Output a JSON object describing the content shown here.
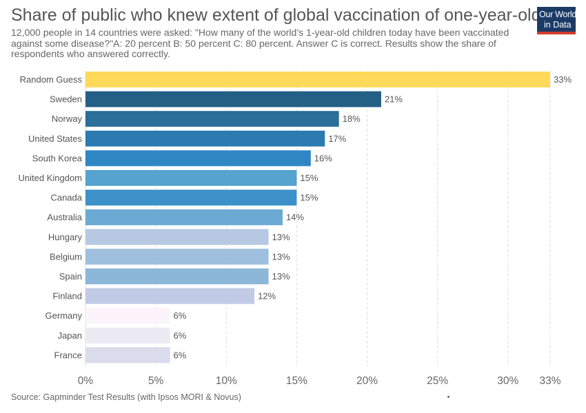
{
  "header": {
    "title": "Share of public who knew extent of global vaccination of one-year-olds",
    "subtitle": "12,000 people in 14 countries were asked: \"How many of the world’s 1-year-old children today have been vaccinated against some disease?\"A: 20 percent B: 50 percent C: 80 percent. Answer C is correct. Results show the share of respondents who answered correctly."
  },
  "logo": {
    "line1": "Our World",
    "line2": "in Data",
    "bg": "#1b3a66",
    "accent": "#d73b2d"
  },
  "footer": {
    "source": "Source: Gapminder Test Results (with Ipsos MORI & Novus)"
  },
  "chart_data": {
    "type": "bar",
    "orientation": "horizontal",
    "title": "Share of public who knew extent of global vaccination of one-year-olds",
    "xlabel": "",
    "ylabel": "",
    "xlim": [
      0,
      33
    ],
    "grid": true,
    "x_ticks": [
      {
        "value": 0,
        "label": "0%"
      },
      {
        "value": 5,
        "label": "5%"
      },
      {
        "value": 10,
        "label": "10%"
      },
      {
        "value": 15,
        "label": "15%"
      },
      {
        "value": 20,
        "label": "20%"
      },
      {
        "value": 25,
        "label": "25%"
      },
      {
        "value": 30,
        "label": "30%"
      },
      {
        "value": 33,
        "label": "33%"
      }
    ],
    "categories": [
      "Random Guess",
      "Sweden",
      "Norway",
      "United States",
      "South Korea",
      "United Kingdom",
      "Canada",
      "Australia",
      "Hungary",
      "Belgium",
      "Spain",
      "Finland",
      "Germany",
      "Japan",
      "France"
    ],
    "values": [
      33,
      21,
      18,
      17,
      16,
      15,
      15,
      14,
      13,
      13,
      13,
      12,
      6,
      6,
      6
    ],
    "value_labels": [
      "33%",
      "21%",
      "18%",
      "17%",
      "16%",
      "15%",
      "15%",
      "14%",
      "13%",
      "13%",
      "13%",
      "12%",
      "6%",
      "6%",
      "6%"
    ],
    "colors": [
      "#ffd95a",
      "#245f86",
      "#2a6e99",
      "#2b7bb0",
      "#2f86c3",
      "#56a3cf",
      "#3d91c9",
      "#6aaad3",
      "#b6c8e2",
      "#9ebfdd",
      "#8db7d9",
      "#c2cbe6",
      "#fdf4fb",
      "#eceaf3",
      "#dadbec"
    ]
  }
}
